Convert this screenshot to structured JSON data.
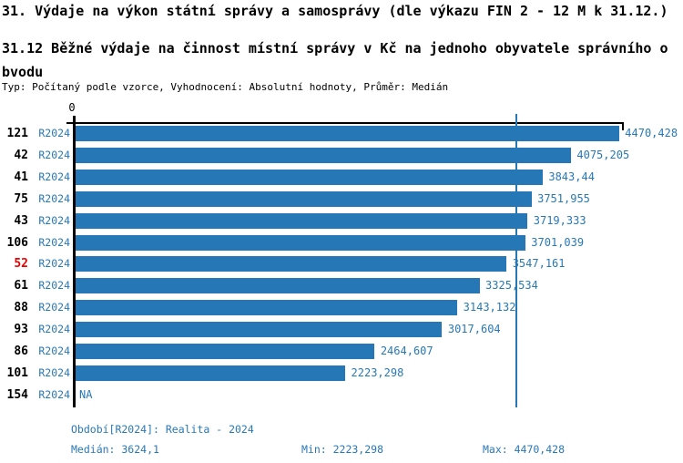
{
  "header": {
    "title": "31. Výdaje na výkon státní správy a samosprávy (dle výkazu FIN 2 - 12 M k 31.12.)",
    "subtitle": "31.12 Běžné výdaje na činnost místní správy v Kč na jednoho obyvatele správního obvodu",
    "meta": "Typ: Počítaný podle vzorce, Vyhodnocení: Absolutní hodnoty, Průměr: Medián"
  },
  "chart_data": {
    "type": "bar",
    "orientation": "horizontal",
    "title": "31.12 Běžné výdaje na činnost místní správy v Kč na jednoho obyvatele správního obvodu",
    "categories": [
      "121",
      "42",
      "41",
      "75",
      "43",
      "106",
      "52",
      "61",
      "88",
      "93",
      "86",
      "101",
      "154"
    ],
    "series_label": "R2024",
    "values": [
      4470.428,
      4075.205,
      3843.44,
      3751.955,
      3719.333,
      3701.039,
      3547.161,
      3325.534,
      3143.132,
      3017.604,
      2464.607,
      2223.298,
      null
    ],
    "value_labels": [
      "4470,428",
      "4075,205",
      "3843,44",
      "3751,955",
      "3719,333",
      "3701,039",
      "3547,161",
      "3325,534",
      "3143,132",
      "3017,604",
      "2464,607",
      "2223,298",
      "NA"
    ],
    "highlighted_category": "52",
    "axis_zero_label": "0",
    "median": 3624.1,
    "min": 2223.298,
    "max": 4470.428,
    "xlim": [
      0,
      4960
    ],
    "grid": false,
    "legend": "none",
    "colors": {
      "bar": "#2577b5",
      "median_line": "#2577b5",
      "label_text": "#2878b7",
      "highlight_text": "#e60000",
      "axis": "#000000"
    }
  },
  "footer": {
    "period": "Období[R2024]: Realita - 2024",
    "median": "Medián: 3624,1",
    "min": "Min: 2223,298",
    "max": "Max: 4470,428"
  }
}
